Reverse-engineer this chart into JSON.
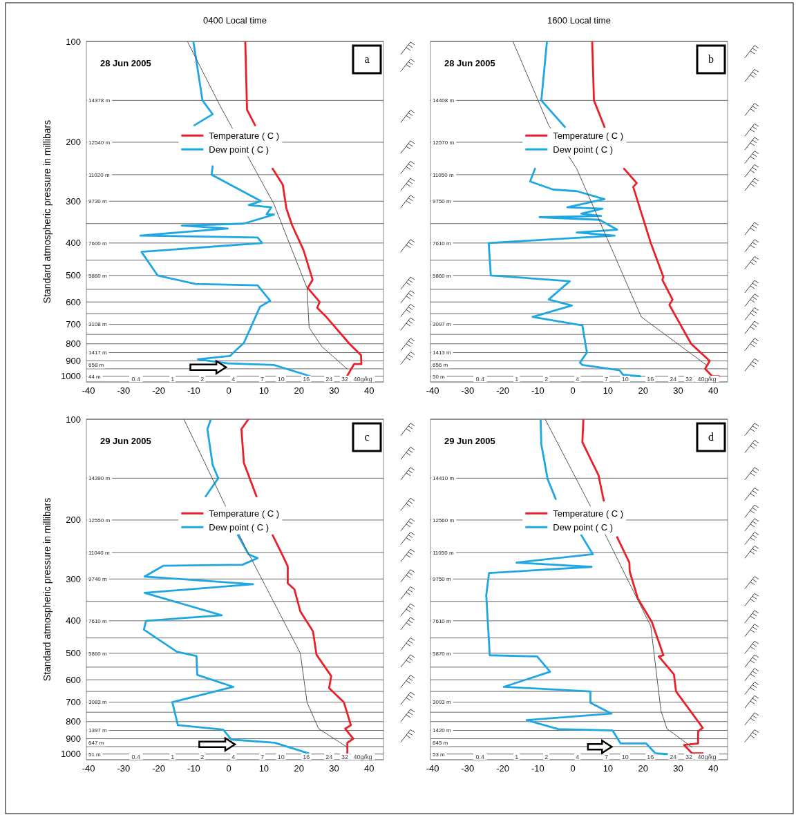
{
  "chart_data": [
    {
      "type": "line",
      "title": "0400 Local time",
      "ylabel": "Standard atmospheric pressure in millibars",
      "xlim": [
        -40.6,
        44.1
      ],
      "ylim": [
        1040,
        100
      ],
      "log": "y",
      "grid": "y",
      "legend": "top",
      "xticks": [
        -40,
        -30,
        -20,
        -10,
        0,
        10,
        20,
        30,
        40
      ],
      "yticks": [
        100,
        {
          "value": 150,
          "label": null
        },
        200,
        {
          "value": 250,
          "label": null
        },
        300,
        {
          "value": 350,
          "label": null
        },
        400,
        {
          "value": 450,
          "label": null
        },
        500,
        {
          "value": 550,
          "label": null
        },
        600,
        {
          "value": 650,
          "label": null
        },
        700,
        {
          "value": 750,
          "label": null
        },
        800,
        {
          "value": 850,
          "label": null
        },
        900,
        {
          "value": 950,
          "label": null
        },
        1000
      ],
      "series": [
        {
          "name": "Temperature ( C )",
          "color": "#e8202a",
          "x": [
            4.7,
            5.2,
            7.5,
            null,
            12.5,
            15.4,
            16.4,
            18,
            21.3,
            23.9,
            22.5,
            25.9,
            25.2,
            27.8,
            34.4,
            37.7,
            37.8,
            35.7,
            33.7
          ],
          "values": [
            100,
            160,
            178,
            null,
            240,
            268,
            315,
            353,
            420,
            515,
            545,
            600,
            625,
            665,
            800,
            865,
            920,
            920,
            1000
          ]
        },
        {
          "name": "Dew point ( C )",
          "color": "#1ea7e1",
          "x": [
            -10.1,
            -7.5,
            -4.6,
            -9.8,
            null,
            -4.6,
            -4.9,
            9.2,
            5.7,
            12.1,
            10.8,
            12.9,
            4.3,
            -13.4,
            -0.3,
            -25.2,
            8.2,
            9.5,
            -24.9,
            -20.3,
            -9.5,
            8.2,
            11.8,
            8.9,
            4.3,
            0.3,
            -8.8,
            -0.3,
            12.8,
            23.3
          ],
          "values": [
            100,
            150,
            165,
            178,
            null,
            236,
            250,
            300,
            308,
            313,
            328,
            329,
            350,
            355,
            362,
            380,
            385,
            400,
            425,
            500,
            530,
            535,
            595,
            620,
            795,
            870,
            890,
            915,
            925,
            1000
          ]
        },
        {
          "color": "#555555",
          "x": [
            -11.8,
            -2.3,
            12.8,
            22.3,
            22.9,
            26.5,
            33.7
          ],
          "values": [
            100,
            157,
            305,
            545,
            715,
            815,
            950
          ]
        }
      ],
      "annotations": [
        "28 Jun 2005",
        "a",
        "14378 m",
        "12540 m",
        "11020 m",
        "9730 m",
        "7600 m",
        "5860 m",
        "3108 m",
        "1417 m",
        "658 m",
        "44 m",
        "0.4",
        "1",
        "2",
        "4",
        "7",
        "10",
        "16",
        "24",
        "32",
        "40g/kg"
      ]
    },
    {
      "type": "line",
      "title": "1600 Local time",
      "xlim": [
        -40.6,
        44.1
      ],
      "ylim": [
        1040,
        100
      ],
      "log": "y",
      "grid": "y",
      "legend": "top",
      "xticks": [
        -40,
        -30,
        -20,
        -10,
        0,
        10,
        20,
        30,
        40
      ],
      "yticks": [
        {
          "value": 100,
          "label": null
        },
        {
          "value": 150,
          "label": null
        },
        {
          "value": 200,
          "label": null
        },
        {
          "value": 250,
          "label": null
        },
        {
          "value": 300,
          "label": null
        },
        {
          "value": 350,
          "label": null
        },
        {
          "value": 400,
          "label": null
        },
        {
          "value": 450,
          "label": null
        },
        {
          "value": 500,
          "label": null
        },
        {
          "value": 550,
          "label": null
        },
        {
          "value": 600,
          "label": null
        },
        {
          "value": 650,
          "label": null
        },
        {
          "value": 700,
          "label": null
        },
        {
          "value": 750,
          "label": null
        },
        {
          "value": 800,
          "label": null
        },
        {
          "value": 850,
          "label": null
        },
        {
          "value": 900,
          "label": null
        },
        {
          "value": 950,
          "label": null
        },
        {
          "value": 1000,
          "label": null
        }
      ],
      "tick_labels": "x",
      "series": [
        {
          "name": "Temperature ( C )",
          "color": "#e8202a",
          "x": [
            5.5,
            6,
            9,
            null,
            14.6,
            18.2,
            17.2,
            22.2,
            25.8,
            25.5,
            28.4,
            27.5,
            33.7,
            39,
            37.7,
            39.7,
            41.6
          ],
          "values": [
            100,
            150,
            180,
            null,
            240,
            265,
            272,
            400,
            505,
            515,
            590,
            612,
            800,
            900,
            950,
            1000,
            1000
          ]
        },
        {
          "name": "Dew point ( C )",
          "color": "#1ea7e1",
          "x": [
            -7.4,
            -9,
            -2.3,
            null,
            -10.8,
            -12.2,
            -5.6,
            1.1,
            9,
            -1.6,
            8.4,
            2.4,
            8,
            -9.5,
            7.6,
            12.6,
            1.1,
            11.9,
            -24,
            -23.4,
            -0.9,
            -6.9,
            -0.3,
            -11.5,
            2.7,
            4,
            2,
            2.7,
            13.3,
            14.3,
            19.2
          ],
          "values": [
            100,
            150,
            180,
            null,
            240,
            262,
            277,
            280,
            296,
            313,
            316,
            327,
            332,
            335,
            341,
            365,
            372,
            380,
            400,
            500,
            520,
            590,
            615,
            665,
            705,
            850,
            910,
            925,
            960,
            990,
            1000
          ]
        },
        {
          "color": "#555555",
          "x": [
            -17.1,
            -6.9,
            1.1,
            19.5,
            38
          ],
          "values": [
            100,
            178,
            240,
            665,
            925
          ]
        }
      ],
      "annotations": [
        "28 Jun 2005",
        "b",
        "14408 m",
        "12570 m",
        "11050 m",
        "9750 m",
        "7610 m",
        "5860 m",
        "3097 m",
        "1413 m",
        "656 m",
        "50 m",
        "0.4",
        "1",
        "2",
        "4",
        "7",
        "10",
        "16",
        "24",
        "32",
        "40g/kg"
      ]
    },
    {
      "type": "line",
      "ylabel": "Standard atmospheric pressure in millibars",
      "xlim": [
        -40.6,
        44.1
      ],
      "ylim": [
        1040,
        100
      ],
      "log": "y",
      "grid": "y",
      "legend": "top",
      "xticks": [
        -40,
        -30,
        -20,
        -10,
        0,
        10,
        20,
        30,
        40
      ],
      "yticks": [
        100,
        {
          "value": 150,
          "label": null
        },
        200,
        {
          "value": 250,
          "label": null
        },
        300,
        {
          "value": 350,
          "label": null
        },
        400,
        {
          "value": 450,
          "label": null
        },
        500,
        {
          "value": 550,
          "label": null
        },
        600,
        {
          "value": 650,
          "label": null
        },
        700,
        {
          "value": 750,
          "label": null
        },
        800,
        {
          "value": 850,
          "label": null
        },
        900,
        {
          "value": 950,
          "label": null
        },
        1000
      ],
      "series": [
        {
          "name": "Temperature ( C )",
          "color": "#e8202a",
          "x": [
            5.6,
            3.6,
            4.3,
            7.9,
            null,
            12.5,
            15.1,
            16.8,
            16.8,
            18.7,
            20.4,
            24,
            25,
            29.2,
            28.6,
            32.8,
            34.8,
            33.2,
            35.5,
            33.8,
            33.8
          ],
          "values": [
            100,
            107,
            135,
            170,
            null,
            222,
            252,
            275,
            309,
            322,
            375,
            430,
            505,
            585,
            635,
            700,
            820,
            840,
            900,
            925,
            1000
          ]
        },
        {
          "name": "Dew point ( C )",
          "color": "#1ea7e1",
          "x": [
            -5.1,
            -6.1,
            -4.6,
            -3,
            -6.6,
            null,
            2.6,
            5.6,
            8.2,
            3.9,
            -18.7,
            -24,
            6.9,
            -24,
            -2,
            -23.6,
            -24.2,
            -14.8,
            -9.2,
            -9,
            1.3,
            -16.1,
            -14.5,
            -1.6,
            0.7,
            13.1,
            22.7
          ],
          "values": [
            100,
            107,
            137,
            150,
            170,
            null,
            222,
            253,
            260,
            272,
            274,
            295,
            311,
            330,
            385,
            400,
            425,
            495,
            510,
            580,
            630,
            700,
            820,
            845,
            905,
            925,
            995
          ]
        },
        {
          "color": "#555555",
          "x": [
            -12.8,
            4.6,
            20.4,
            22.3,
            25.6,
            33.5
          ],
          "values": [
            100,
            240,
            500,
            700,
            840,
            950
          ]
        }
      ],
      "annotations": [
        "29 Jun 2005",
        "c",
        "14390 m",
        "12550 m",
        "11040 m",
        "9740 m",
        "7610 m",
        "5860 m",
        "3083 m",
        "1397 m",
        "647 m",
        "51 m",
        "0.4",
        "1",
        "2",
        "4",
        "7",
        "10",
        "16",
        "24",
        "32",
        "40g/kg"
      ]
    },
    {
      "type": "line",
      "xlim": [
        -40.6,
        44.1
      ],
      "ylim": [
        1040,
        100
      ],
      "log": "y",
      "grid": "y",
      "legend": "top",
      "xticks": [
        -40,
        -30,
        -20,
        -10,
        0,
        10,
        20,
        30,
        40
      ],
      "yticks": [
        {
          "value": 100,
          "label": null
        },
        {
          "value": 150,
          "label": null
        },
        {
          "value": 200,
          "label": null
        },
        {
          "value": 250,
          "label": null
        },
        {
          "value": 300,
          "label": null
        },
        {
          "value": 350,
          "label": null
        },
        {
          "value": 400,
          "label": null
        },
        {
          "value": 450,
          "label": null
        },
        {
          "value": 500,
          "label": null
        },
        {
          "value": 550,
          "label": null
        },
        {
          "value": 600,
          "label": null
        },
        {
          "value": 650,
          "label": null
        },
        {
          "value": 700,
          "label": null
        },
        {
          "value": 750,
          "label": null
        },
        {
          "value": 800,
          "label": null
        },
        {
          "value": 850,
          "label": null
        },
        {
          "value": 900,
          "label": null
        },
        {
          "value": 950,
          "label": null
        },
        {
          "value": 1000,
          "label": null
        }
      ],
      "tick_labels": "x",
      "series": [
        {
          "name": "Temperature ( C )",
          "color": "#e8202a",
          "x": [
            3,
            2.7,
            7.3,
            8.8,
            null,
            12.6,
            16.1,
            16.2,
            18.5,
            22.5,
            25.8,
            24.5,
            28.8,
            29.4,
            37,
            35.7,
            35.7,
            31.7,
            34,
            37
          ],
          "values": [
            100,
            117,
            147,
            175,
            null,
            225,
            268,
            285,
            343,
            403,
            507,
            511,
            578,
            650,
            835,
            855,
            930,
            940,
            995,
            995
          ]
        },
        {
          "name": "Dew point ( C )",
          "color": "#1ea7e1",
          "x": [
            -9.2,
            -9,
            -7.2,
            -4.9,
            null,
            2.4,
            5.7,
            -16.1,
            5.3,
            -23.9,
            -24.7,
            -23.7,
            -10.2,
            -6.5,
            -19.7,
            5,
            5,
            11,
            -13.2,
            -4.2,
            11.3,
            13.6,
            20.9,
            23.5,
            26.8
          ],
          "values": [
            100,
            119,
            151,
            173,
            null,
            222,
            253,
            268,
            276,
            288,
            335,
            507,
            511,
            568,
            630,
            650,
            703,
            757,
            792,
            842,
            850,
            930,
            930,
            995,
            1000
          ]
        },
        {
          "color": "#555555",
          "x": [
            -7.9,
            9.6,
            22.2,
            25.1,
            26.8,
            34
          ],
          "values": [
            100,
            225,
            415,
            742,
            840,
            955
          ]
        }
      ],
      "annotations": [
        "29 Jun 2005",
        "d",
        "14410 m",
        "12560 m",
        "11050 m",
        "9750 m",
        "7610 m",
        "5870 m",
        "3093 m",
        "1420 m",
        "645 m",
        "53 m",
        "0.4",
        "1",
        "2",
        "4",
        "7",
        "10",
        "16",
        "24",
        "32",
        "40g/kg"
      ]
    }
  ]
}
